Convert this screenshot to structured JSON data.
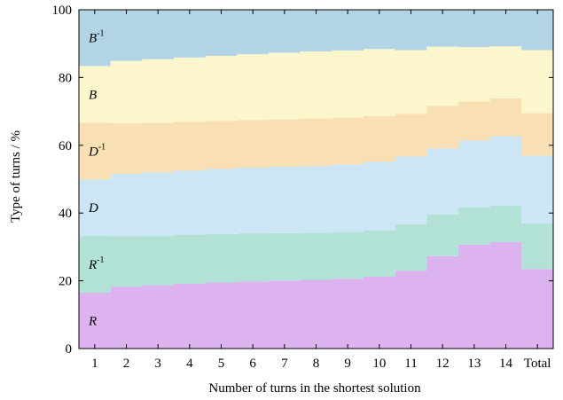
{
  "chart_data": {
    "type": "area",
    "xlabel": "Number of turns in the shortest solution",
    "ylabel": "Type of turns / %",
    "categories": [
      "1",
      "2",
      "3",
      "4",
      "5",
      "6",
      "7",
      "8",
      "9",
      "10",
      "11",
      "12",
      "13",
      "14",
      "Total"
    ],
    "yticks": [
      "0",
      "20",
      "40",
      "60",
      "80",
      "100"
    ],
    "ylim": [
      0,
      100
    ],
    "series": [
      {
        "name": "R",
        "base": "R",
        "sup": "",
        "color": "#dcb3ee",
        "values": [
          16.5,
          18.3,
          18.7,
          19.1,
          19.5,
          19.8,
          20.1,
          20.3,
          20.6,
          21.2,
          23.0,
          27.3,
          30.7,
          31.4,
          23.5
        ]
      },
      {
        "name": "R-1",
        "base": "R",
        "sup": "-1",
        "color": "#b2e1d6",
        "values": [
          16.8,
          14.8,
          14.5,
          14.4,
          14.3,
          14.2,
          14.0,
          13.9,
          13.8,
          13.7,
          13.7,
          12.3,
          11.0,
          10.8,
          13.4
        ]
      },
      {
        "name": "D",
        "base": "D",
        "sup": "",
        "color": "#cce6f5",
        "values": [
          16.6,
          18.5,
          18.8,
          19.0,
          19.2,
          19.4,
          19.6,
          19.7,
          19.9,
          20.2,
          20.0,
          19.5,
          19.7,
          20.5,
          20.0
        ]
      },
      {
        "name": "D-1",
        "base": "D",
        "sup": "-1",
        "color": "#f8e0b4",
        "values": [
          16.8,
          14.9,
          14.6,
          14.4,
          14.2,
          14.1,
          14.0,
          14.0,
          13.9,
          13.5,
          12.6,
          12.6,
          11.5,
          11.2,
          12.6
        ]
      },
      {
        "name": "B",
        "base": "B",
        "sup": "",
        "color": "#fbf6cb",
        "values": [
          16.7,
          18.4,
          18.8,
          19.0,
          19.2,
          19.4,
          19.6,
          19.8,
          19.8,
          19.8,
          18.8,
          17.4,
          16.1,
          15.3,
          18.6
        ]
      },
      {
        "name": "B-1",
        "base": "B",
        "sup": "-1",
        "color": "#b2d4e6",
        "values": [
          16.6,
          15.1,
          14.6,
          14.1,
          13.6,
          13.1,
          12.7,
          12.3,
          12.0,
          11.6,
          11.9,
          10.9,
          11.0,
          10.8,
          11.9
        ]
      }
    ],
    "grid": false,
    "legend": "inline labels"
  }
}
